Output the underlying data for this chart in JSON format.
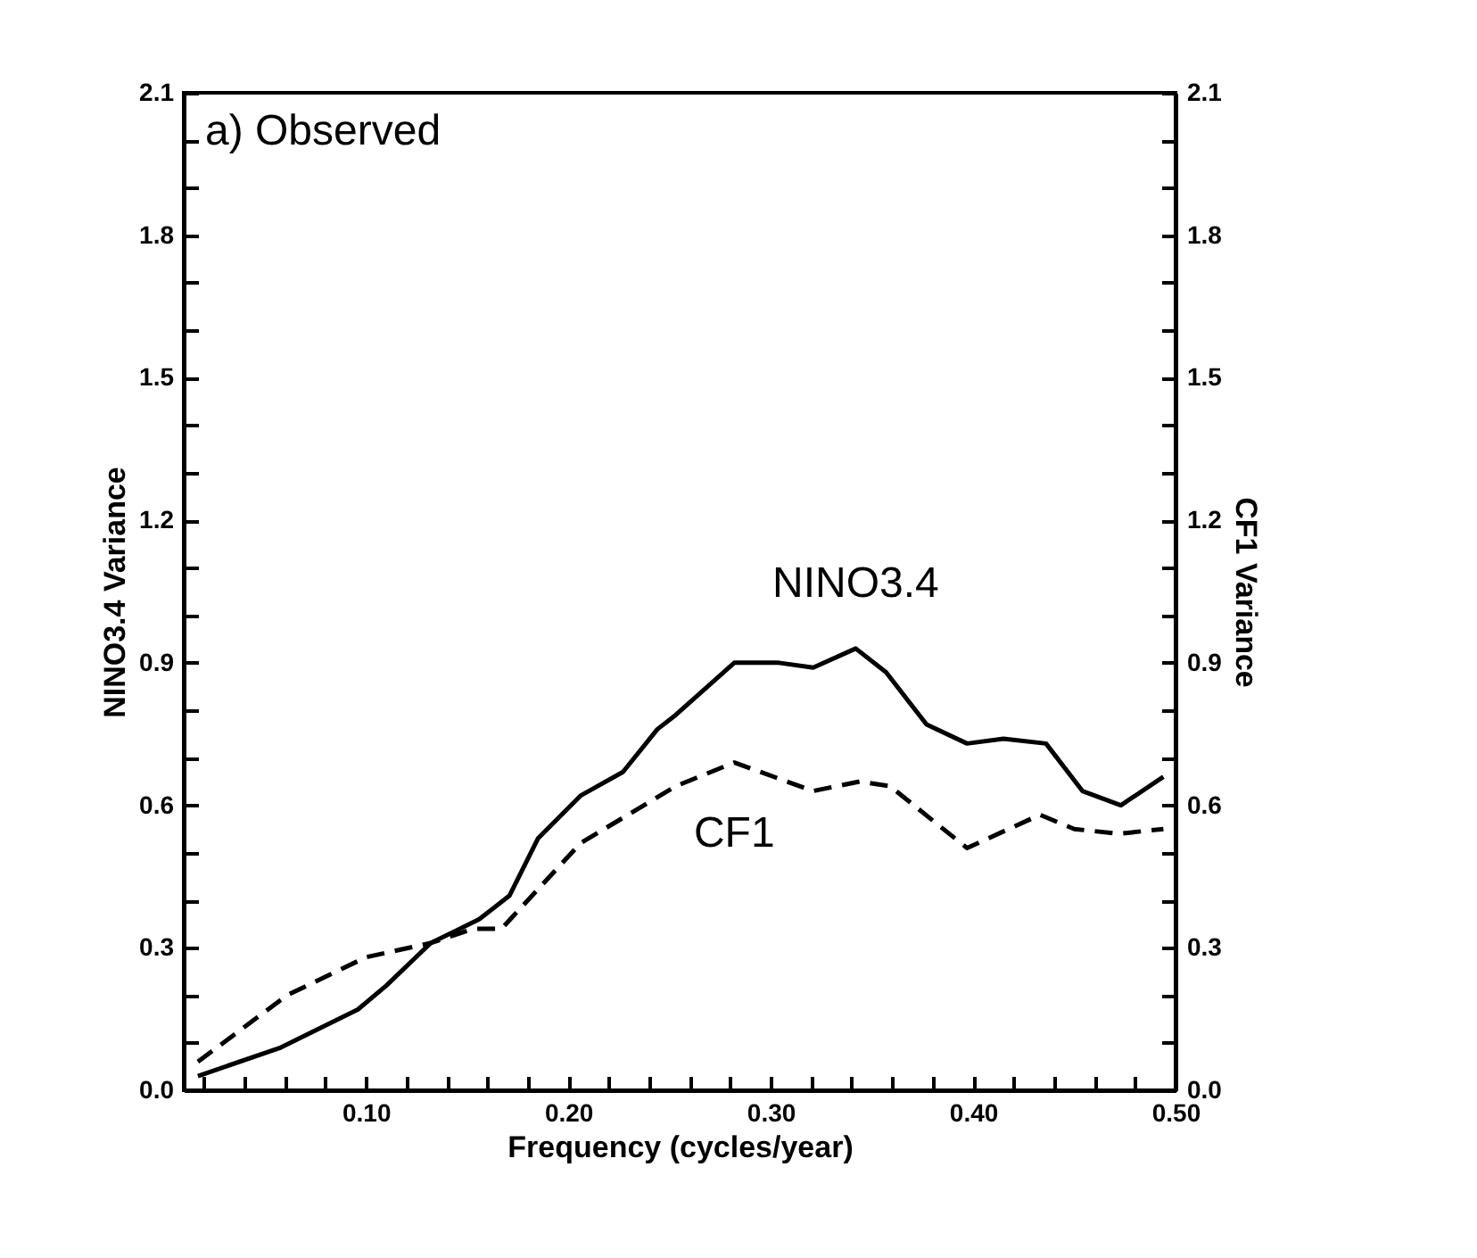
{
  "chart_data": {
    "type": "line",
    "xlabel": "Frequency (cycles/year)",
    "ylabel": "NINO3.4 Variance",
    "y2label": "CF1 Variance",
    "annotations": [
      "a) Observed"
    ],
    "xlim": [
      0.01,
      0.5
    ],
    "xticks": [
      {
        "value": 0.02,
        "label": null
      },
      {
        "value": 0.04,
        "label": null
      },
      {
        "value": 0.06,
        "label": null
      },
      {
        "value": 0.08,
        "label": null
      },
      {
        "value": 0.1,
        "label": "0.10"
      },
      {
        "value": 0.12,
        "label": null
      },
      {
        "value": 0.14,
        "label": null
      },
      {
        "value": 0.16,
        "label": null
      },
      {
        "value": 0.18,
        "label": null
      },
      {
        "value": 0.2,
        "label": "0.20"
      },
      {
        "value": 0.22,
        "label": null
      },
      {
        "value": 0.24,
        "label": null
      },
      {
        "value": 0.26,
        "label": null
      },
      {
        "value": 0.28,
        "label": null
      },
      {
        "value": 0.3,
        "label": "0.30"
      },
      {
        "value": 0.32,
        "label": null
      },
      {
        "value": 0.34,
        "label": null
      },
      {
        "value": 0.36,
        "label": null
      },
      {
        "value": 0.38,
        "label": null
      },
      {
        "value": 0.4,
        "label": "0.40"
      },
      {
        "value": 0.42,
        "label": null
      },
      {
        "value": 0.44,
        "label": null
      },
      {
        "value": 0.46,
        "label": null
      },
      {
        "value": 0.48,
        "label": null
      },
      {
        "value": 0.5,
        "label": "0.50"
      }
    ],
    "ylim": [
      0,
      2.1
    ],
    "yticks": [
      {
        "value": 0,
        "label": "0.0"
      },
      {
        "value": 0.1,
        "label": null
      },
      {
        "value": 0.2,
        "label": null
      },
      {
        "value": 0.3,
        "label": "0.3"
      },
      {
        "value": 0.4,
        "label": null
      },
      {
        "value": 0.5,
        "label": null
      },
      {
        "value": 0.6,
        "label": "0.6"
      },
      {
        "value": 0.7,
        "label": null
      },
      {
        "value": 0.8,
        "label": null
      },
      {
        "value": 0.9,
        "label": "0.9"
      },
      {
        "value": 1.0,
        "label": null
      },
      {
        "value": 1.1,
        "label": null
      },
      {
        "value": 1.2,
        "label": "1.2"
      },
      {
        "value": 1.3,
        "label": null
      },
      {
        "value": 1.4,
        "label": null
      },
      {
        "value": 1.5,
        "label": "1.5"
      },
      {
        "value": 1.6,
        "label": null
      },
      {
        "value": 1.7,
        "label": null
      },
      {
        "value": 1.8,
        "label": "1.8"
      },
      {
        "value": 1.9,
        "label": null
      },
      {
        "value": 2.0,
        "label": null
      },
      {
        "value": 2.1,
        "label": "2.1"
      }
    ],
    "y2lim": [
      0,
      2.1
    ],
    "y2ticks": [
      {
        "value": 0,
        "label": "0.0"
      },
      {
        "value": 0.1,
        "label": null
      },
      {
        "value": 0.2,
        "label": null
      },
      {
        "value": 0.3,
        "label": "0.3"
      },
      {
        "value": 0.4,
        "label": null
      },
      {
        "value": 0.5,
        "label": null
      },
      {
        "value": 0.6,
        "label": "0.6"
      },
      {
        "value": 0.7,
        "label": null
      },
      {
        "value": 0.8,
        "label": null
      },
      {
        "value": 0.9,
        "label": "0.9"
      },
      {
        "value": 1.0,
        "label": null
      },
      {
        "value": 1.1,
        "label": null
      },
      {
        "value": 1.2,
        "label": "1.2"
      },
      {
        "value": 1.3,
        "label": null
      },
      {
        "value": 1.4,
        "label": null
      },
      {
        "value": 1.5,
        "label": "1.5"
      },
      {
        "value": 1.6,
        "label": null
      },
      {
        "value": 1.7,
        "label": null
      },
      {
        "value": 1.8,
        "label": "1.8"
      },
      {
        "value": 1.9,
        "label": null
      },
      {
        "value": 2.0,
        "label": null
      },
      {
        "value": 2.1,
        "label": "2.1"
      }
    ],
    "series": [
      {
        "name": "NINO3.4",
        "color": "#000000",
        "line_style": "solid",
        "x": [
          0.017,
          0.058,
          0.096,
          0.11,
          0.132,
          0.156,
          0.171,
          0.185,
          0.206,
          0.227,
          0.244,
          0.253,
          0.282,
          0.304,
          0.321,
          0.342,
          0.357,
          0.377,
          0.397,
          0.415,
          0.436,
          0.454,
          0.473,
          0.494
        ],
        "values": [
          0.03,
          0.09,
          0.17,
          0.22,
          0.31,
          0.36,
          0.41,
          0.53,
          0.62,
          0.67,
          0.76,
          0.79,
          0.9,
          0.9,
          0.89,
          0.93,
          0.88,
          0.77,
          0.73,
          0.74,
          0.73,
          0.63,
          0.6,
          0.66
        ]
      },
      {
        "name": "CF1",
        "color": "#000000",
        "line_style": "dashed",
        "axis": "y2",
        "x": [
          0.017,
          0.061,
          0.1,
          0.132,
          0.153,
          0.167,
          0.206,
          0.253,
          0.282,
          0.321,
          0.344,
          0.359,
          0.397,
          0.433,
          0.45,
          0.472,
          0.494
        ],
        "values": [
          0.06,
          0.2,
          0.28,
          0.31,
          0.34,
          0.34,
          0.52,
          0.64,
          0.69,
          0.63,
          0.65,
          0.64,
          0.51,
          0.58,
          0.55,
          0.54,
          0.55
        ]
      }
    ]
  }
}
